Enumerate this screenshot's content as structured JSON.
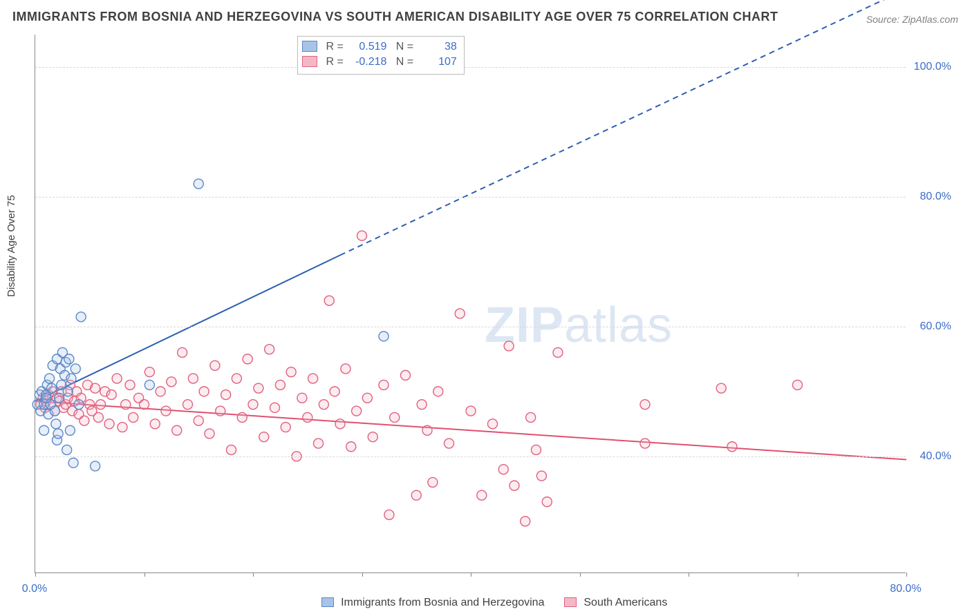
{
  "title": "IMMIGRANTS FROM BOSNIA AND HERZEGOVINA VS SOUTH AMERICAN DISABILITY AGE OVER 75 CORRELATION CHART",
  "source": "Source: ZipAtlas.com",
  "watermark_bold": "ZIP",
  "watermark_light": "atlas",
  "y_axis_label": "Disability Age Over 75",
  "plot": {
    "x_min": 0,
    "x_max": 80,
    "y_min": 22,
    "y_max": 105,
    "x_ticks": [
      0,
      10,
      20,
      30,
      40,
      50,
      60,
      70,
      80
    ],
    "x_tick_labels_shown": {
      "0": "0.0%",
      "80": "80.0%"
    },
    "y_gridlines": [
      40,
      60,
      80,
      100
    ],
    "y_tick_labels": {
      "40": "40.0%",
      "60": "60.0%",
      "80": "80.0%",
      "100": "100.0%"
    },
    "background_color": "#ffffff",
    "grid_color": "#d8d8d8",
    "axis_color": "#888888",
    "marker_radius": 7,
    "marker_fill_opacity": 0.28,
    "marker_stroke_width": 1.4
  },
  "series": {
    "a": {
      "label": "Immigrants from Bosnia and Herzegovina",
      "fill": "#a8c3e8",
      "stroke": "#5a88c6",
      "R": "0.519",
      "N": "38",
      "trend": {
        "x1": 0,
        "y1": 48.5,
        "x2_solid": 28,
        "y2_solid": 71,
        "x2_dash": 80,
        "y2_dash": 112,
        "color": "#2e5fb0",
        "width": 2
      },
      "points": [
        [
          0.2,
          48
        ],
        [
          0.4,
          49.5
        ],
        [
          0.5,
          47
        ],
        [
          0.6,
          50
        ],
        [
          0.8,
          48
        ],
        [
          0.8,
          44
        ],
        [
          1.0,
          49.5
        ],
        [
          1.1,
          51
        ],
        [
          1.2,
          46.5
        ],
        [
          1.3,
          52
        ],
        [
          1.4,
          48
        ],
        [
          1.5,
          50.5
        ],
        [
          1.6,
          54
        ],
        [
          1.8,
          47
        ],
        [
          1.9,
          45
        ],
        [
          2.0,
          55
        ],
        [
          2.0,
          42.5
        ],
        [
          2.1,
          43.5
        ],
        [
          2.2,
          49
        ],
        [
          2.3,
          53.5
        ],
        [
          2.4,
          51
        ],
        [
          2.5,
          56
        ],
        [
          2.7,
          52.5
        ],
        [
          2.8,
          54.5
        ],
        [
          2.9,
          41
        ],
        [
          3.0,
          50
        ],
        [
          3.1,
          55
        ],
        [
          3.2,
          44
        ],
        [
          3.3,
          52
        ],
        [
          3.5,
          39
        ],
        [
          3.7,
          53.5
        ],
        [
          4.0,
          48
        ],
        [
          4.2,
          61.5
        ],
        [
          5.5,
          38.5
        ],
        [
          10.5,
          51
        ],
        [
          15.0,
          82
        ],
        [
          32.0,
          58.5
        ],
        [
          1.0,
          49
        ]
      ]
    },
    "b": {
      "label": "South Americans",
      "fill": "#f3b8c6",
      "stroke": "#e0607f",
      "R": "-0.218",
      "N": "107",
      "trend": {
        "x1": 0,
        "y1": 48.5,
        "x2_solid": 80,
        "y2_solid": 39.5,
        "color": "#e0506f",
        "width": 2
      },
      "points": [
        [
          0.5,
          48
        ],
        [
          0.7,
          49
        ],
        [
          0.9,
          47.5
        ],
        [
          1.0,
          48.5
        ],
        [
          1.2,
          49.5
        ],
        [
          1.4,
          48
        ],
        [
          1.6,
          50
        ],
        [
          1.8,
          47
        ],
        [
          2.0,
          49
        ],
        [
          2.2,
          48.5
        ],
        [
          2.4,
          50
        ],
        [
          2.6,
          47.5
        ],
        [
          2.8,
          48
        ],
        [
          3.0,
          49
        ],
        [
          3.2,
          51
        ],
        [
          3.4,
          47
        ],
        [
          3.6,
          48.5
        ],
        [
          3.8,
          50
        ],
        [
          4.0,
          46.5
        ],
        [
          4.2,
          49
        ],
        [
          4.5,
          45.5
        ],
        [
          4.8,
          51
        ],
        [
          5.0,
          48
        ],
        [
          5.2,
          47
        ],
        [
          5.5,
          50.5
        ],
        [
          5.8,
          46
        ],
        [
          6.0,
          48
        ],
        [
          6.4,
          50
        ],
        [
          6.8,
          45
        ],
        [
          7.0,
          49.5
        ],
        [
          7.5,
          52
        ],
        [
          8.0,
          44.5
        ],
        [
          8.3,
          48
        ],
        [
          8.7,
          51
        ],
        [
          9.0,
          46
        ],
        [
          9.5,
          49
        ],
        [
          10.0,
          48
        ],
        [
          10.5,
          53
        ],
        [
          11.0,
          45
        ],
        [
          11.5,
          50
        ],
        [
          12.0,
          47
        ],
        [
          12.5,
          51.5
        ],
        [
          13.0,
          44
        ],
        [
          13.5,
          56
        ],
        [
          14.0,
          48
        ],
        [
          14.5,
          52
        ],
        [
          15.0,
          45.5
        ],
        [
          15.5,
          50
        ],
        [
          16.0,
          43.5
        ],
        [
          16.5,
          54
        ],
        [
          17.0,
          47
        ],
        [
          17.5,
          49.5
        ],
        [
          18.0,
          41
        ],
        [
          18.5,
          52
        ],
        [
          19.0,
          46
        ],
        [
          19.5,
          55
        ],
        [
          20.0,
          48
        ],
        [
          20.5,
          50.5
        ],
        [
          21.0,
          43
        ],
        [
          21.5,
          56.5
        ],
        [
          22.0,
          47.5
        ],
        [
          22.5,
          51
        ],
        [
          23.0,
          44.5
        ],
        [
          23.5,
          53
        ],
        [
          24.0,
          40
        ],
        [
          24.5,
          49
        ],
        [
          25.0,
          46
        ],
        [
          25.5,
          52
        ],
        [
          26.0,
          42
        ],
        [
          26.5,
          48
        ],
        [
          27.0,
          64
        ],
        [
          27.5,
          50
        ],
        [
          28.0,
          45
        ],
        [
          28.5,
          53.5
        ],
        [
          29.0,
          41.5
        ],
        [
          29.5,
          47
        ],
        [
          30.0,
          74
        ],
        [
          30.5,
          49
        ],
        [
          31.0,
          43
        ],
        [
          32.0,
          51
        ],
        [
          32.5,
          31
        ],
        [
          33.0,
          46
        ],
        [
          34.0,
          52.5
        ],
        [
          35.0,
          34
        ],
        [
          35.5,
          48
        ],
        [
          36.0,
          44
        ],
        [
          36.5,
          36
        ],
        [
          37.0,
          50
        ],
        [
          38.0,
          42
        ],
        [
          39.0,
          62
        ],
        [
          40.0,
          47
        ],
        [
          41.0,
          34
        ],
        [
          42.0,
          45
        ],
        [
          43.0,
          38
        ],
        [
          43.5,
          57
        ],
        [
          44.0,
          35.5
        ],
        [
          45.0,
          30
        ],
        [
          45.5,
          46
        ],
        [
          46.0,
          41
        ],
        [
          46.5,
          37
        ],
        [
          47.0,
          33
        ],
        [
          48.0,
          56
        ],
        [
          56.0,
          48
        ],
        [
          56.0,
          42
        ],
        [
          63.0,
          50.5
        ],
        [
          64.0,
          41.5
        ],
        [
          70.0,
          51
        ]
      ]
    }
  }
}
